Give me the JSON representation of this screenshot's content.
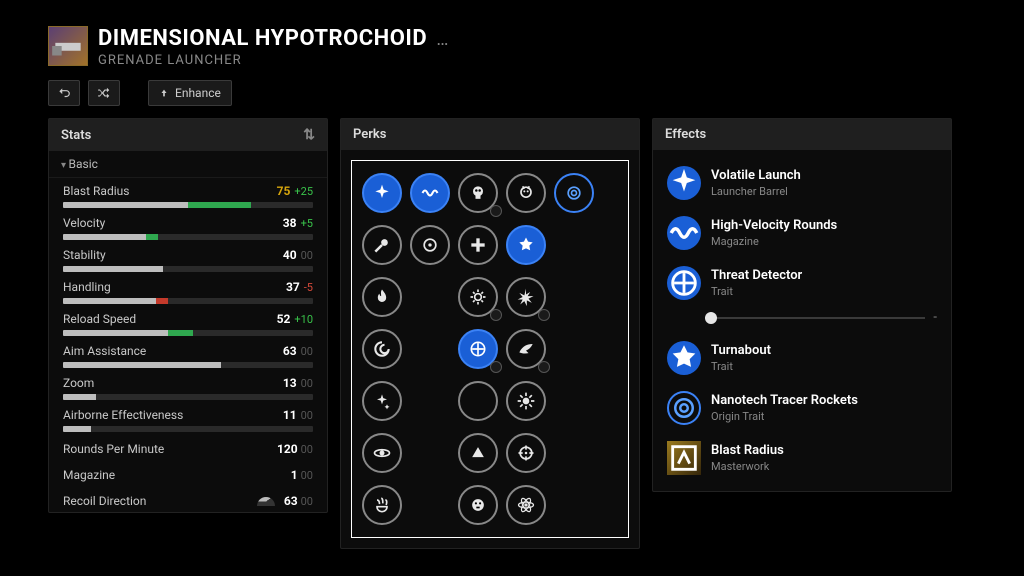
{
  "header": {
    "title": "DIMENSIONAL HYPOTROCHOID",
    "subtitle": "GRENADE LAUNCHER"
  },
  "toolbar": {
    "undo_tooltip": "Undo",
    "random_tooltip": "Randomize",
    "enhance_label": "Enhance"
  },
  "colors": {
    "accent": "#1a5fd6",
    "accent_border": "#3b82f6",
    "pos": "#39c24a",
    "neg": "#d64a3a",
    "gold": "#d6a50c",
    "bar_bg": "#2a2a2a",
    "bar_fill": "#bdbdbd",
    "panel_bg": "#0c0c0c",
    "header_bg": "#1f1f1f"
  },
  "stats": {
    "header": "Stats",
    "section": "Basic",
    "bars": [
      {
        "name": "Blast Radius",
        "value": 75,
        "mod": 25,
        "gold": true
      },
      {
        "name": "Velocity",
        "value": 38,
        "mod": 5
      },
      {
        "name": "Stability",
        "value": 40,
        "mod": 0
      },
      {
        "name": "Handling",
        "value": 37,
        "mod": -5
      },
      {
        "name": "Reload Speed",
        "value": 52,
        "mod": 10
      },
      {
        "name": "Aim Assistance",
        "value": 63,
        "mod": 0
      },
      {
        "name": "Zoom",
        "value": 13,
        "mod": 0
      },
      {
        "name": "Airborne Effectiveness",
        "value": 11,
        "mod": 0
      }
    ],
    "simple": [
      {
        "name": "Rounds Per Minute",
        "value": 120,
        "mod": 0
      },
      {
        "name": "Magazine",
        "value": 1,
        "mod": 0
      },
      {
        "name": "Recoil Direction",
        "value": 63,
        "mod": 0,
        "pie": true
      }
    ]
  },
  "perks": {
    "header": "Perks",
    "columns": 5,
    "layout": [
      [
        {
          "ic": "burst",
          "sel": true
        },
        {
          "ic": "wave",
          "sel": true
        },
        {
          "ic": "skull",
          "enh": true
        },
        {
          "ic": "skull2"
        },
        {
          "ic": "ring",
          "origin": true
        }
      ],
      [
        {
          "ic": "comet"
        },
        {
          "ic": "target"
        },
        {
          "ic": "plus"
        },
        {
          "ic": "star",
          "sel": true
        },
        null
      ],
      [
        {
          "ic": "flame"
        },
        null,
        {
          "ic": "gear",
          "enh": true
        },
        {
          "ic": "spark",
          "enh": true
        },
        null
      ],
      [
        {
          "ic": "swirl"
        },
        null,
        {
          "ic": "cross",
          "sel": true,
          "enh": true
        },
        {
          "ic": "wing",
          "enh": true
        },
        null
      ],
      [
        {
          "ic": "sparkle"
        },
        null,
        {
          "ic": "moon"
        },
        {
          "ic": "blast"
        },
        null
      ],
      [
        {
          "ic": "orbit"
        },
        null,
        {
          "ic": "tri"
        },
        {
          "ic": "scope"
        },
        null
      ],
      [
        {
          "ic": "claw"
        },
        null,
        {
          "ic": "face"
        },
        {
          "ic": "atom"
        },
        null
      ]
    ]
  },
  "effects": {
    "header": "Effects",
    "items": [
      {
        "title": "Volatile Launch",
        "sub": "Launcher Barrel",
        "icon": "burst"
      },
      {
        "title": "High-Velocity Rounds",
        "sub": "Magazine",
        "icon": "wave"
      },
      {
        "title": "Threat Detector",
        "sub": "Trait",
        "icon": "cross",
        "slider": true
      },
      {
        "title": "Turnabout",
        "sub": "Trait",
        "icon": "star"
      },
      {
        "title": "Nanotech Tracer Rockets",
        "sub": "Origin Trait",
        "icon": "ring",
        "origin": true
      },
      {
        "title": "Blast Radius",
        "sub": "Masterwork",
        "icon": "mw",
        "mw": true
      }
    ]
  }
}
